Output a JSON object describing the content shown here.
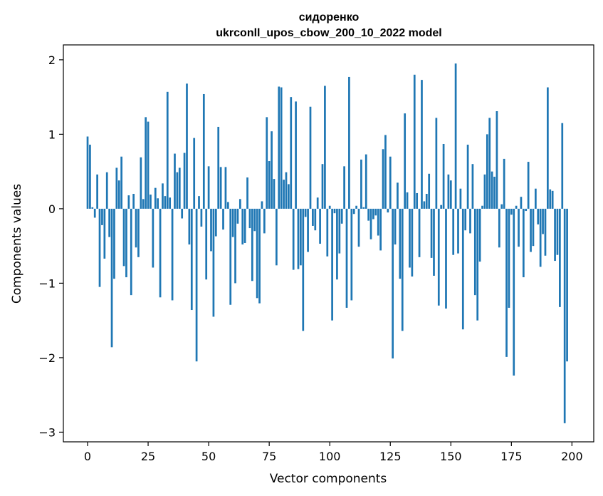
{
  "chart_data": {
    "type": "bar",
    "title": "сидоренко",
    "subtitle": "ukrconll_upos_cbow_200_10_2022 model",
    "xlabel": "Vector components",
    "ylabel": "Components values",
    "xlim": [
      -10,
      209
    ],
    "ylim": [
      -3.13,
      2.2
    ],
    "x_ticks": [
      0,
      25,
      50,
      75,
      100,
      125,
      150,
      175,
      200
    ],
    "x_tick_labels": [
      "0",
      "25",
      "50",
      "75",
      "100",
      "125",
      "150",
      "175",
      "200"
    ],
    "y_ticks": [
      -3,
      -2,
      -1,
      0,
      1,
      2
    ],
    "y_tick_labels": [
      "−3",
      "−2",
      "−1",
      "0",
      "1",
      "2"
    ],
    "grid": false,
    "bar_color": "#1f77b4",
    "values": [
      0.97,
      0.86,
      0.02,
      -0.12,
      0.46,
      -1.05,
      -0.22,
      -0.67,
      0.49,
      -0.38,
      -1.86,
      -0.94,
      0.55,
      0.38,
      0.7,
      -0.77,
      -0.92,
      0.18,
      -1.16,
      0.2,
      -0.52,
      -0.65,
      0.69,
      0.13,
      1.23,
      1.17,
      0.19,
      -0.79,
      0.28,
      0.14,
      -1.19,
      0.34,
      0.17,
      1.57,
      0.15,
      -1.23,
      0.74,
      0.49,
      0.55,
      -0.13,
      0.75,
      1.68,
      -0.48,
      -1.36,
      0.95,
      -2.05,
      0.17,
      -0.24,
      1.54,
      -0.95,
      0.57,
      -0.57,
      -1.45,
      -0.37,
      1.1,
      0.56,
      -0.28,
      0.56,
      0.09,
      -1.29,
      -0.38,
      -1.0,
      -0.2,
      0.13,
      -0.48,
      -0.46,
      0.42,
      -0.26,
      -0.97,
      -0.3,
      -1.2,
      -1.27,
      0.1,
      -0.33,
      1.23,
      0.64,
      1.04,
      0.4,
      -0.76,
      1.64,
      1.63,
      0.39,
      0.49,
      0.33,
      1.5,
      -0.82,
      1.44,
      -0.81,
      -0.76,
      -1.64,
      -0.11,
      -0.58,
      1.37,
      -0.23,
      -0.29,
      0.15,
      -0.47,
      0.6,
      1.65,
      -0.64,
      0.04,
      -1.5,
      -0.06,
      -0.95,
      -0.6,
      -0.2,
      0.57,
      -1.33,
      1.77,
      -1.23,
      -0.07,
      0.04,
      -0.51,
      0.66,
      0.02,
      0.73,
      -0.16,
      -0.41,
      -0.14,
      -0.09,
      -0.36,
      -0.56,
      0.8,
      0.99,
      -0.05,
      0.7,
      -2.01,
      -0.48,
      0.35,
      -0.94,
      -1.64,
      1.28,
      0.22,
      -0.79,
      -0.91,
      1.8,
      0.21,
      -0.65,
      1.73,
      0.1,
      0.2,
      0.47,
      -0.66,
      -0.9,
      1.22,
      -1.3,
      0.05,
      0.87,
      -1.34,
      0.46,
      0.38,
      -0.62,
      1.95,
      -0.6,
      0.27,
      -1.62,
      -0.29,
      0.86,
      -0.33,
      0.6,
      -1.16,
      -1.5,
      -0.71,
      0.04,
      0.46,
      1.0,
      1.22,
      0.5,
      0.43,
      1.31,
      -0.52,
      0.06,
      0.67,
      -1.99,
      -1.33,
      -0.08,
      -2.24,
      0.04,
      -0.51,
      0.16,
      -0.92,
      -0.03,
      0.63,
      -0.58,
      -0.5,
      0.27,
      -0.21,
      -0.78,
      -0.34,
      -0.63,
      1.63,
      0.26,
      0.24,
      -0.7,
      -0.62,
      -1.32,
      1.15,
      -2.88,
      -2.05
    ]
  }
}
